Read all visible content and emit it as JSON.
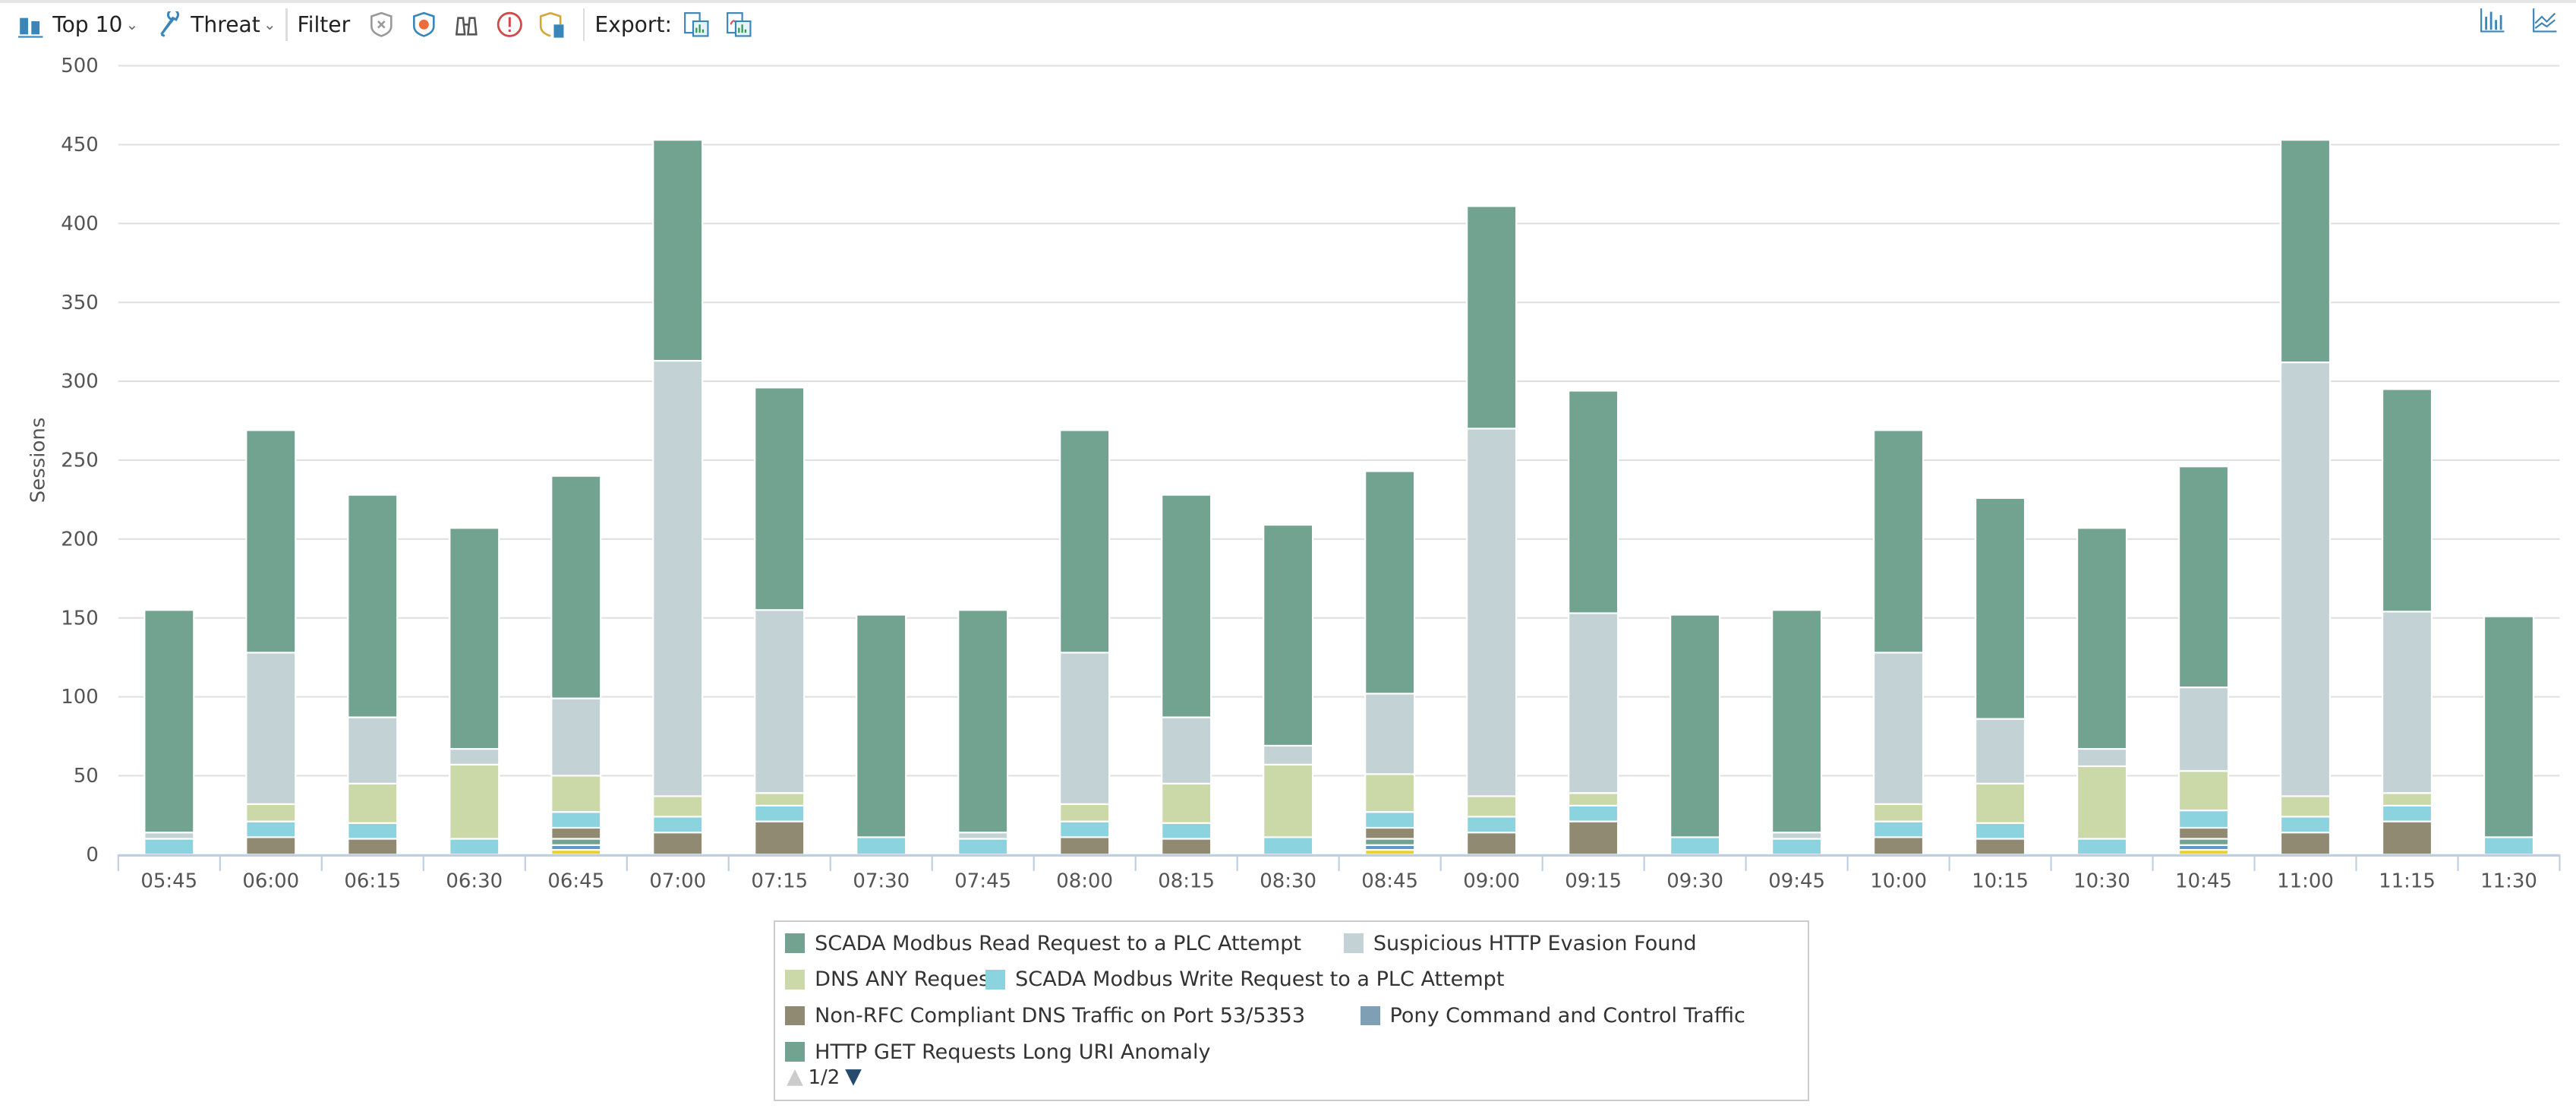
{
  "toolbar": {
    "top_label": "Top 10",
    "threat_label": "Threat",
    "filter_label": "Filter",
    "export_label": "Export:",
    "filter_icons": [
      "shield-x-icon",
      "shield-bug-icon",
      "binoculars-icon",
      "alert-circle-icon",
      "shield-report-icon"
    ],
    "export_icons": [
      "export-image-icon",
      "export-pdf-icon"
    ],
    "view_icons": [
      "bar-chart-view-icon",
      "line-chart-view-icon"
    ]
  },
  "legend": {
    "page": "1/2",
    "items": [
      {
        "label": "SCADA Modbus Read Request to a PLC Attempt",
        "color": "#72a391"
      },
      {
        "label": "Suspicious HTTP Evasion Found",
        "color": "#c3d2d5"
      },
      {
        "label": "DNS ANY Request",
        "color": "#cbd8a8"
      },
      {
        "label": "SCADA Modbus Write Request to a PLC Attempt",
        "color": "#8bd3df"
      },
      {
        "label": "Non-RFC Compliant DNS Traffic on Port 53/5353",
        "color": "#918a73"
      },
      {
        "label": "Pony Command and Control Traffic",
        "color": "#7f9fb5"
      },
      {
        "label": "HTTP GET Requests Long URI Anomaly",
        "color": "#72a391"
      }
    ]
  },
  "chart_data": {
    "type": "bar",
    "stacked": true,
    "title": "",
    "xlabel": "",
    "ylabel": "Sessions",
    "ylim": [
      0,
      500
    ],
    "yticks": [
      0,
      50,
      100,
      150,
      200,
      250,
      300,
      350,
      400,
      450,
      500
    ],
    "grid": true,
    "legend_position": "bottom",
    "categories": [
      "05:45",
      "06:00",
      "06:15",
      "06:30",
      "06:45",
      "07:00",
      "07:15",
      "07:30",
      "07:45",
      "08:00",
      "08:15",
      "08:30",
      "08:45",
      "09:00",
      "09:15",
      "09:30",
      "09:45",
      "10:00",
      "10:15",
      "10:30",
      "10:45",
      "11:00",
      "11:15",
      "11:30"
    ],
    "series": [
      {
        "color": "#e8d424",
        "values": [
          0,
          0,
          0,
          0,
          3,
          0,
          0,
          0,
          0,
          0,
          0,
          0,
          3,
          0,
          0,
          0,
          0,
          0,
          0,
          0,
          3,
          0,
          0,
          0
        ]
      },
      {
        "name": "Pony Command and Control Traffic",
        "color": "#5b9ac4",
        "values": [
          0,
          0,
          0,
          0,
          3,
          0,
          0,
          0,
          0,
          0,
          0,
          0,
          3,
          0,
          0,
          0,
          0,
          0,
          0,
          0,
          3,
          0,
          0,
          0
        ]
      },
      {
        "name": "HTTP GET Requests Long URI Anomaly",
        "color": "#72a391",
        "values": [
          0,
          0,
          0,
          0,
          4,
          0,
          0,
          0,
          0,
          0,
          0,
          0,
          4,
          0,
          0,
          0,
          0,
          0,
          0,
          0,
          4,
          0,
          0,
          0
        ]
      },
      {
        "name": "Non-RFC Compliant DNS Traffic on Port 53/5353",
        "color": "#918a73",
        "values": [
          0,
          11,
          10,
          0,
          7,
          14,
          21,
          0,
          0,
          11,
          10,
          0,
          7,
          14,
          21,
          0,
          0,
          11,
          10,
          0,
          7,
          14,
          21,
          0
        ]
      },
      {
        "name": "SCADA Modbus Write Request to a PLC Attempt",
        "color": "#8bd3df",
        "values": [
          10,
          10,
          10,
          10,
          10,
          10,
          10,
          11,
          10,
          10,
          10,
          11,
          10,
          10,
          10,
          11,
          10,
          10,
          10,
          10,
          11,
          10,
          10,
          11
        ]
      },
      {
        "name": "DNS ANY Request",
        "color": "#cbd8a8",
        "values": [
          0,
          11,
          25,
          47,
          23,
          13,
          8,
          0,
          0,
          11,
          25,
          46,
          24,
          13,
          8,
          0,
          0,
          11,
          25,
          46,
          25,
          13,
          8,
          0
        ]
      },
      {
        "name": "Suspicious HTTP Evasion Found",
        "color": "#c3d2d5",
        "values": [
          4,
          96,
          42,
          10,
          49,
          276,
          116,
          0,
          4,
          96,
          42,
          12,
          51,
          233,
          114,
          0,
          4,
          96,
          41,
          11,
          53,
          275,
          115,
          0
        ]
      },
      {
        "name": "SCADA Modbus Read Request to a PLC Attempt",
        "color": "#72a391",
        "values": [
          141,
          141,
          141,
          140,
          141,
          140,
          141,
          141,
          141,
          141,
          141,
          140,
          141,
          141,
          141,
          141,
          141,
          141,
          140,
          140,
          140,
          141,
          141,
          140
        ]
      }
    ]
  }
}
